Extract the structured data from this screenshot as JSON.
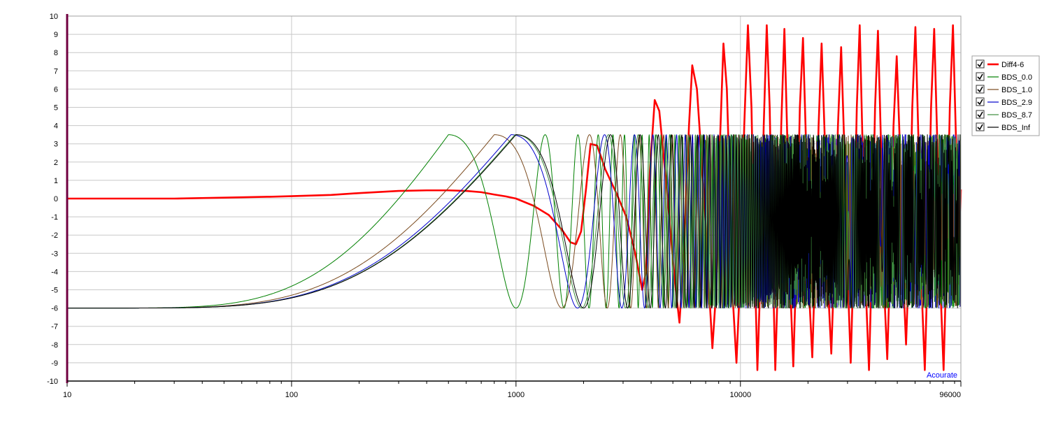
{
  "chart_data": {
    "type": "line",
    "x_scale": "log",
    "xlim": [
      10,
      96000
    ],
    "ylim": [
      -10,
      10
    ],
    "x_ticks": [
      10,
      100,
      1000,
      10000,
      96000
    ],
    "x_tick_labels": [
      "10",
      "100",
      "1000",
      "10000",
      "96000"
    ],
    "y_ticks": [
      -10,
      -9,
      -8,
      -7,
      -6,
      -5,
      -4,
      -3,
      -2,
      -1,
      0,
      1,
      2,
      3,
      4,
      5,
      6,
      7,
      8,
      9,
      10
    ],
    "y_tick_labels": [
      "-10",
      "-9",
      "-8",
      "-7",
      "-6",
      "-5",
      "-4",
      "-3",
      "-2",
      "-1",
      "0",
      "1",
      "2",
      "3",
      "4",
      "5",
      "6",
      "7",
      "8",
      "9",
      "10"
    ],
    "grid": true,
    "legend": "right",
    "status_text": "Acourate",
    "status_color": "#0000ff",
    "series": [
      {
        "name": "Diff4-6",
        "color": "#ff0000",
        "checked": true,
        "bold": true,
        "points": [
          [
            10,
            0
          ],
          [
            30,
            0
          ],
          [
            50,
            0.05
          ],
          [
            80,
            0.1
          ],
          [
            100,
            0.13
          ],
          [
            150,
            0.2
          ],
          [
            200,
            0.3
          ],
          [
            300,
            0.42
          ],
          [
            400,
            0.45
          ],
          [
            500,
            0.45
          ],
          [
            600,
            0.42
          ],
          [
            700,
            0.35
          ],
          [
            800,
            0.22
          ],
          [
            900,
            0.12
          ],
          [
            1000,
            0
          ],
          [
            1200,
            -0.4
          ],
          [
            1400,
            -0.9
          ],
          [
            1600,
            -1.7
          ],
          [
            1750,
            -2.4
          ],
          [
            1850,
            -2.5
          ],
          [
            1950,
            -1.8
          ],
          [
            2050,
            0.5
          ],
          [
            2150,
            3.0
          ],
          [
            2300,
            2.9
          ],
          [
            2500,
            1.6
          ],
          [
            2800,
            0.3
          ],
          [
            3100,
            -1.0
          ],
          [
            3400,
            -3.0
          ],
          [
            3650,
            -5.0
          ],
          [
            3800,
            -4.0
          ],
          [
            3950,
            1.5
          ],
          [
            4150,
            5.4
          ],
          [
            4350,
            4.8
          ],
          [
            4700,
            0.5
          ],
          [
            5100,
            -4.5
          ],
          [
            5350,
            -6.8
          ],
          [
            5600,
            -3.0
          ],
          [
            5900,
            4.0
          ],
          [
            6100,
            7.3
          ],
          [
            6400,
            6.0
          ],
          [
            6900,
            0
          ],
          [
            7250,
            -5.0
          ],
          [
            7500,
            -8.2
          ],
          [
            7800,
            -5.0
          ],
          [
            8100,
            3.0
          ],
          [
            8400,
            8.5
          ],
          [
            8700,
            6.0
          ],
          [
            9000,
            0
          ],
          [
            9300,
            -6.0
          ],
          [
            9600,
            -9.0
          ],
          [
            10000,
            -4.0
          ],
          [
            10400,
            4.0
          ],
          [
            10800,
            9.5
          ],
          [
            11200,
            5.0
          ],
          [
            11500,
            -2.0
          ],
          [
            11900,
            -9.4
          ],
          [
            12300,
            -4.0
          ],
          [
            12700,
            4.0
          ],
          [
            13100,
            9.5
          ],
          [
            13500,
            5.0
          ],
          [
            13900,
            -3.0
          ],
          [
            14300,
            -9.4
          ],
          [
            14800,
            -3.0
          ],
          [
            15200,
            4.0
          ],
          [
            15700,
            9.3
          ],
          [
            16200,
            3.0
          ],
          [
            16700,
            -5.0
          ],
          [
            17200,
            -9.2
          ],
          [
            17800,
            -3.0
          ],
          [
            18400,
            5.0
          ],
          [
            19000,
            8.8
          ],
          [
            19600,
            3.0
          ],
          [
            20200,
            -5.0
          ],
          [
            20900,
            -8.7
          ],
          [
            21600,
            -3.0
          ],
          [
            22300,
            4.0
          ],
          [
            23000,
            8.5
          ],
          [
            23800,
            3.0
          ],
          [
            24600,
            -5.0
          ],
          [
            25400,
            -8.5
          ],
          [
            26300,
            -3.0
          ],
          [
            27200,
            4.0
          ],
          [
            28100,
            8.3
          ],
          [
            29000,
            3.0
          ],
          [
            30000,
            -4.0
          ],
          [
            31000,
            -9.0
          ],
          [
            32000,
            -3.0
          ],
          [
            33000,
            5.0
          ],
          [
            34000,
            9.5
          ],
          [
            35000,
            3.0
          ],
          [
            36200,
            -5.0
          ],
          [
            37400,
            -9.4
          ],
          [
            38600,
            -3.0
          ],
          [
            39800,
            5.0
          ],
          [
            41000,
            9.2
          ],
          [
            42300,
            3.0
          ],
          [
            43700,
            -5.0
          ],
          [
            45100,
            -8.8
          ],
          [
            46600,
            -3.0
          ],
          [
            48100,
            4.0
          ],
          [
            49700,
            7.8
          ],
          [
            51300,
            3.0
          ],
          [
            53000,
            -4.0
          ],
          [
            54700,
            -8.0
          ],
          [
            56500,
            -3.0
          ],
          [
            58300,
            5.0
          ],
          [
            60200,
            9.4
          ],
          [
            62200,
            3.0
          ],
          [
            64200,
            -5.0
          ],
          [
            66300,
            -9.4
          ],
          [
            68500,
            -3.0
          ],
          [
            70700,
            5.0
          ],
          [
            73000,
            9.3
          ],
          [
            75400,
            3.0
          ],
          [
            77900,
            -5.0
          ],
          [
            80400,
            -9.4
          ],
          [
            83000,
            -3.0
          ],
          [
            85700,
            5.0
          ],
          [
            88500,
            9.5
          ],
          [
            91400,
            3.0
          ],
          [
            94000,
            -4.0
          ],
          [
            96000,
            0.5
          ]
        ]
      },
      {
        "name": "BDS_0.0",
        "color": "#008000",
        "checked": true,
        "bold": false,
        "fpeak": 500,
        "fmin": 1000,
        "sharp": 0.08
      },
      {
        "name": "BDS_1.0",
        "color": "#7a4a1e",
        "checked": true,
        "bold": false,
        "fpeak": 800,
        "fmin": 1600,
        "sharp": 0.095
      },
      {
        "name": "BDS_2.9",
        "color": "#0000cc",
        "checked": true,
        "bold": false,
        "fpeak": 950,
        "fmin": 1880,
        "sharp": 0.101
      },
      {
        "name": "BDS_8.7",
        "color": "#3c8c3c",
        "checked": true,
        "bold": false,
        "fpeak": 990,
        "fmin": 1960,
        "sharp": 0.103
      },
      {
        "name": "BDS_Inf",
        "color": "#000000",
        "checked": true,
        "bold": false,
        "fpeak": 1000,
        "fmin": 2000,
        "sharp": 0.104
      }
    ]
  }
}
